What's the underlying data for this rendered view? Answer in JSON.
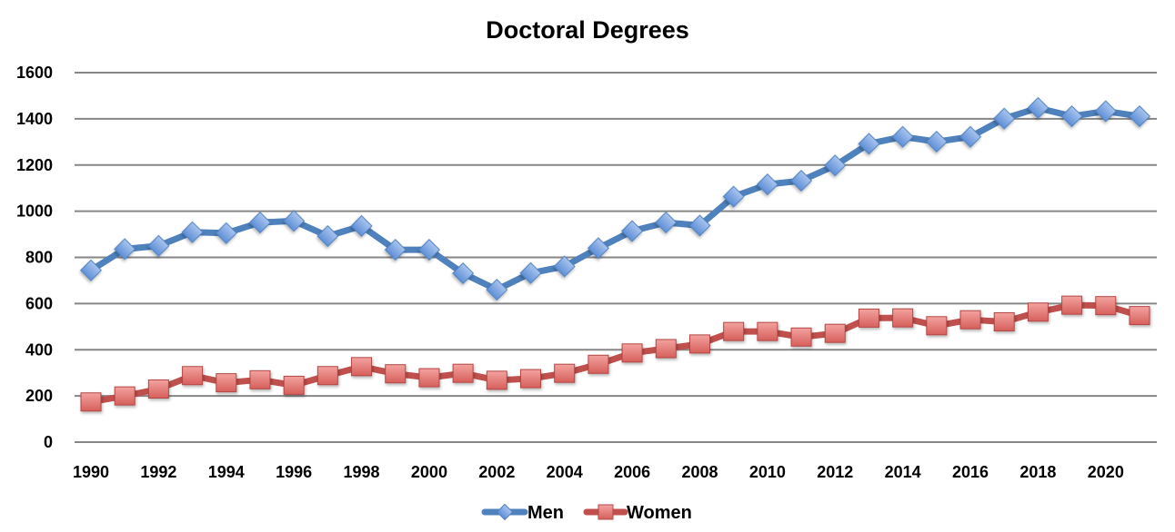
{
  "chart_data": {
    "type": "line",
    "title": "Doctoral Degrees",
    "xlabel": "",
    "ylabel": "",
    "x": [
      1990,
      1991,
      1992,
      1993,
      1994,
      1995,
      1996,
      1997,
      1998,
      1999,
      2000,
      2001,
      2002,
      2003,
      2004,
      2005,
      2006,
      2007,
      2008,
      2009,
      2010,
      2011,
      2012,
      2013,
      2014,
      2015,
      2016,
      2017,
      2018,
      2019,
      2020,
      2021
    ],
    "x_tick_labels": [
      "1990",
      "1992",
      "1994",
      "1996",
      "1998",
      "2000",
      "2002",
      "2004",
      "2006",
      "2008",
      "2010",
      "2012",
      "2014",
      "2016",
      "2018",
      "2020"
    ],
    "y_tick_labels": [
      "0",
      "200",
      "400",
      "600",
      "800",
      "1000",
      "1200",
      "1400",
      "1600"
    ],
    "ylim": [
      0,
      1600
    ],
    "grid": true,
    "legend_position": "bottom",
    "series": [
      {
        "name": "Men",
        "color": "#4f81bd",
        "marker": "diamond",
        "marker_fill": "#7ea6e0",
        "values": [
          744,
          836,
          850,
          909,
          905,
          951,
          958,
          892,
          936,
          833,
          833,
          731,
          660,
          732,
          761,
          840,
          914,
          951,
          938,
          1063,
          1116,
          1132,
          1198,
          1292,
          1322,
          1301,
          1322,
          1401,
          1447,
          1411,
          1433,
          1411
        ]
      },
      {
        "name": "Women",
        "color": "#c0504d",
        "marker": "square",
        "marker_fill": "#e8807d",
        "values": [
          174,
          200,
          230,
          288,
          257,
          270,
          246,
          288,
          327,
          296,
          279,
          298,
          268,
          275,
          298,
          337,
          386,
          405,
          425,
          479,
          479,
          455,
          471,
          537,
          538,
          504,
          530,
          521,
          563,
          593,
          591,
          548
        ]
      }
    ]
  }
}
